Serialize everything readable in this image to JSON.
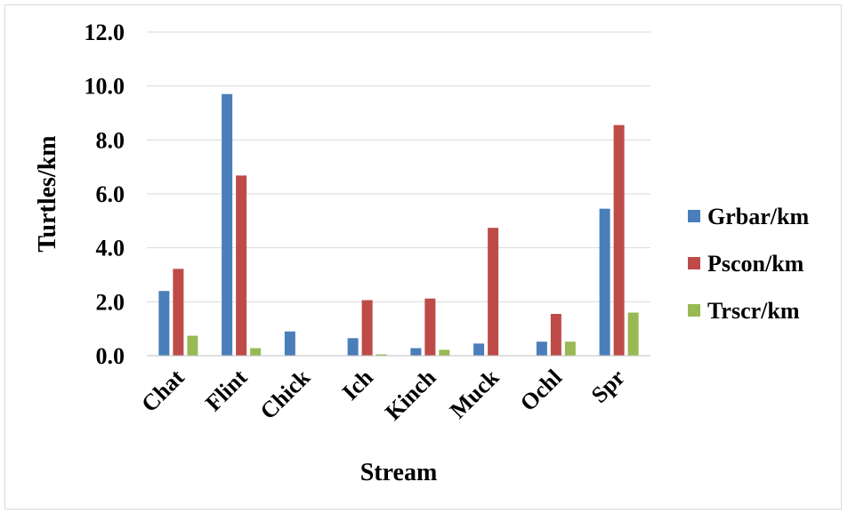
{
  "chart_data": {
    "type": "bar",
    "xlabel": "Stream",
    "ylabel": "Turtles/km",
    "ylim": [
      0,
      12
    ],
    "ytick_step": 2,
    "ytick_labels": [
      "0.0",
      "2.0",
      "4.0",
      "6.0",
      "8.0",
      "10.0",
      "12.0"
    ],
    "grid": true,
    "legend_position": "right",
    "categories": [
      "Chat",
      "Flint",
      "Chick",
      "Ich",
      "Kinch",
      "Muck",
      "Ochl",
      "Spr"
    ],
    "series": [
      {
        "name": "Grbar/km",
        "color": "#4a7ebb",
        "values": [
          2.4,
          9.7,
          0.9,
          0.65,
          0.28,
          0.45,
          0.52,
          5.45
        ]
      },
      {
        "name": "Pscon/km",
        "color": "#be4b48",
        "values": [
          3.22,
          6.68,
          0,
          2.06,
          2.12,
          4.74,
          1.55,
          8.55
        ]
      },
      {
        "name": "Trscr/km",
        "color": "#98b954",
        "values": [
          0.74,
          0.28,
          0,
          0.05,
          0.22,
          0,
          0.52,
          1.6
        ]
      }
    ]
  }
}
